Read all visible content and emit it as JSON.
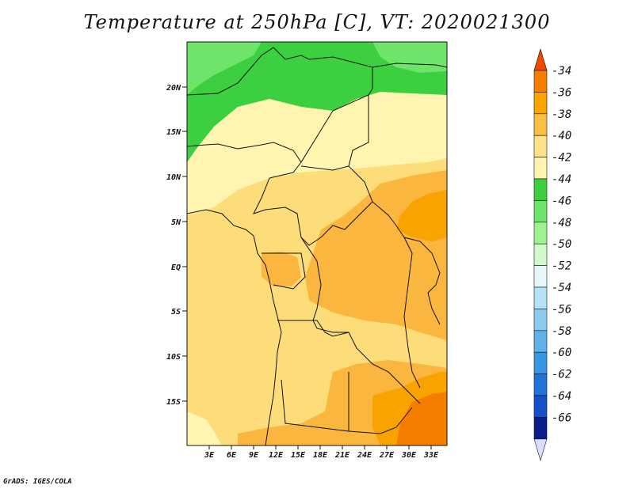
{
  "title": "Temperature at 250hPa [C], VT: 2020021300",
  "credit": "GrADS: IGES/COLA",
  "map": {
    "lon_labels": [
      "3E",
      "6E",
      "9E",
      "12E",
      "15E",
      "18E",
      "21E",
      "24E",
      "27E",
      "30E",
      "33E"
    ],
    "lat_labels": [
      "20N",
      "15N",
      "10N",
      "5N",
      "EQ",
      "5S",
      "10S",
      "15S"
    ],
    "lon_range": [
      0,
      35
    ],
    "lat_range": [
      -20,
      25
    ]
  },
  "colorbar": {
    "levels": [
      "-34",
      "-36",
      "-38",
      "-40",
      "-42",
      "-44",
      "-46",
      "-48",
      "-50",
      "-52",
      "-54",
      "-56",
      "-58",
      "-60",
      "-62",
      "-64",
      "-66"
    ],
    "colors": [
      "#f04a00",
      "#f57e00",
      "#fba400",
      "#fcbf45",
      "#fde28a",
      "#fff5b0",
      "#3ccf3f",
      "#6ee56a",
      "#9ef293",
      "#d2fbcc",
      "#e6f7fb",
      "#b5e2f7",
      "#8ccaf2",
      "#5fb2ec",
      "#3597e5",
      "#1f74db",
      "#1450c8",
      "#0a1d8c",
      "#dcdcff"
    ]
  },
  "chart_data": {
    "type": "heatmap",
    "title": "Temperature at 250hPa [C], VT: 2020021300",
    "levels": [
      -34,
      -36,
      -38,
      -40,
      -42,
      -44,
      -46,
      -48,
      -50,
      -52,
      -54,
      -56,
      -58,
      -60,
      -62,
      -64,
      -66
    ],
    "xlim": [
      0,
      35
    ],
    "ylim": [
      -20,
      25
    ]
  }
}
